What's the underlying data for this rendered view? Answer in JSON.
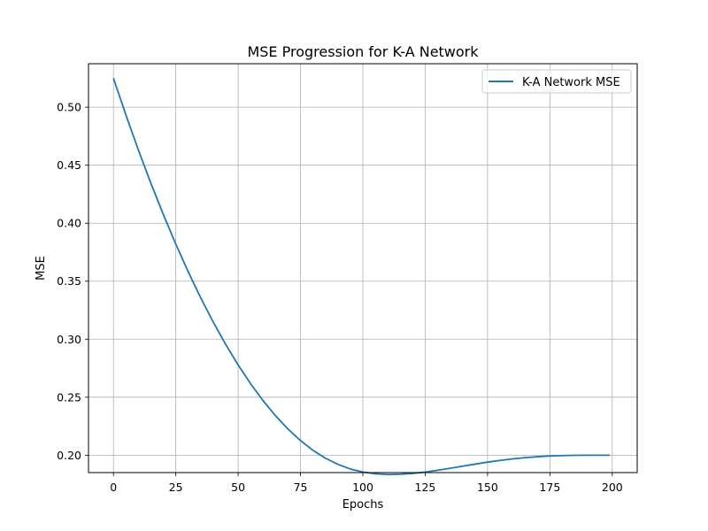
{
  "chart_data": {
    "type": "line",
    "title": "MSE Progression for K-A Network",
    "xlabel": "Epochs",
    "ylabel": "MSE",
    "xlim": [
      -10,
      210
    ],
    "ylim": [
      0.185,
      0.5375
    ],
    "grid": true,
    "legend_position": "upper-right",
    "x_ticks": [
      0,
      25,
      50,
      75,
      100,
      125,
      150,
      175,
      200
    ],
    "x_tick_labels": [
      "0",
      "25",
      "50",
      "75",
      "100",
      "125",
      "150",
      "175",
      "200"
    ],
    "y_ticks": [
      0.2,
      0.25,
      0.3,
      0.35,
      0.4,
      0.45,
      0.5
    ],
    "y_tick_labels": [
      "0.20",
      "0.25",
      "0.30",
      "0.35",
      "0.40",
      "0.45",
      "0.50"
    ],
    "series": [
      {
        "name": "K-A Network MSE",
        "color": "#1f77b4",
        "x": [
          0,
          5,
          10,
          15,
          20,
          25,
          30,
          35,
          40,
          45,
          50,
          55,
          60,
          65,
          70,
          75,
          80,
          85,
          90,
          95,
          100,
          105,
          110,
          115,
          120,
          125,
          130,
          135,
          140,
          145,
          150,
          155,
          160,
          165,
          170,
          175,
          180,
          185,
          190,
          195,
          199
        ],
        "y": [
          0.525,
          0.4933,
          0.4631,
          0.4345,
          0.4075,
          0.382,
          0.358,
          0.3356,
          0.3148,
          0.2955,
          0.2778,
          0.2616,
          0.247,
          0.234,
          0.2225,
          0.2126,
          0.2042,
          0.1974,
          0.1921,
          0.1881,
          0.1855,
          0.184,
          0.1834,
          0.1836,
          0.1843,
          0.1855,
          0.187,
          0.1887,
          0.1905,
          0.1923,
          0.194,
          0.1955,
          0.1968,
          0.1979,
          0.1987,
          0.1993,
          0.1997,
          0.1999,
          0.2,
          0.2,
          0.2
        ]
      }
    ]
  }
}
